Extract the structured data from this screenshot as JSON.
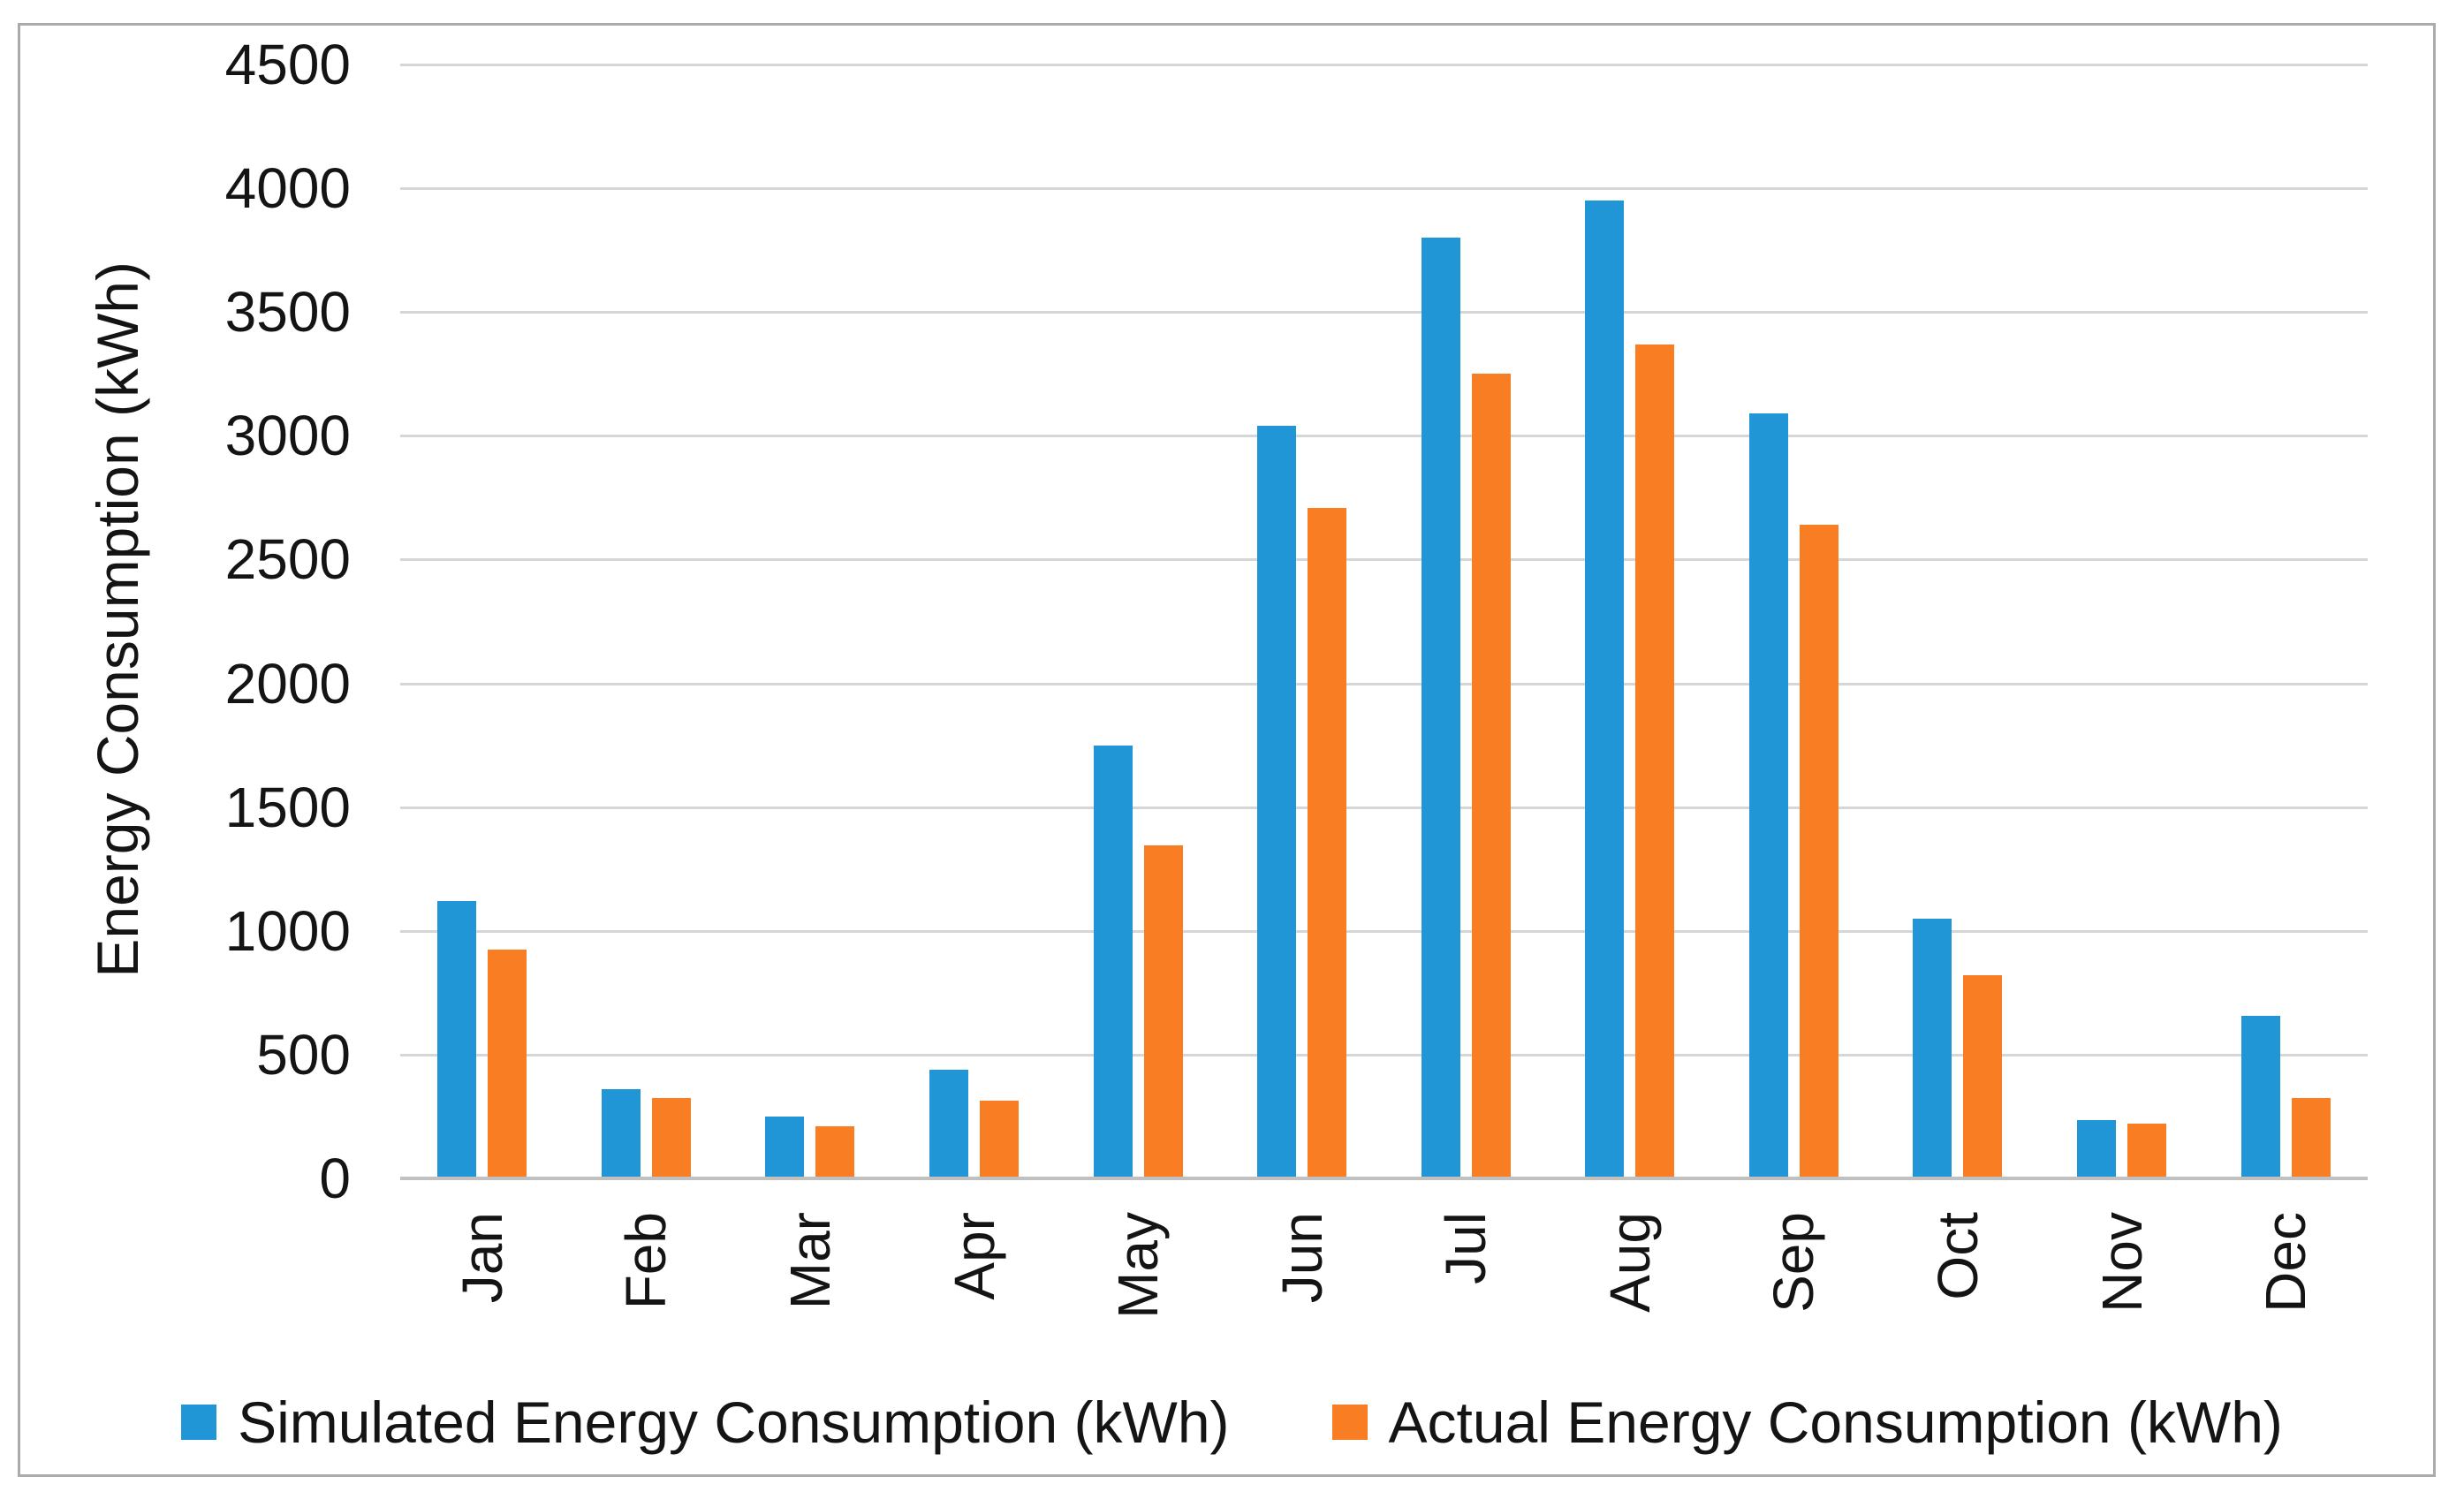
{
  "figure": {
    "background": "#ffffff",
    "border_color": "#ababab"
  },
  "chart_data": {
    "type": "bar",
    "title": "",
    "categories": [
      "Jan",
      "Feb",
      "Mar",
      "Apr",
      "May",
      "Jun",
      "Jul",
      "Aug",
      "Sep",
      "Oct",
      "Nov",
      "Dec"
    ],
    "series": [
      {
        "name": "Simulated Energy Consumption (kWh)",
        "color": "#2196d6",
        "values": [
          1120,
          360,
          250,
          440,
          1750,
          3040,
          3800,
          3950,
          3090,
          1050,
          235,
          655
        ]
      },
      {
        "name": "Actual Energy Consumption (kWh)",
        "color": "#f97d22",
        "values": [
          925,
          325,
          210,
          315,
          1345,
          2710,
          3250,
          3370,
          2640,
          820,
          220,
          325
        ]
      }
    ],
    "xlabel": "",
    "ylabel": "Energy Consumption (kWh)",
    "ylim": [
      0,
      4500
    ],
    "yticks": [
      0,
      500,
      1000,
      1500,
      2000,
      2500,
      3000,
      3500,
      4000,
      4500
    ],
    "grid": true,
    "gridline_color": "#d6d6d6",
    "axis_line_color": "#c0c0c0",
    "text_color": "#141414",
    "legend_position": "bottom",
    "xlabel_rotation": -90
  }
}
